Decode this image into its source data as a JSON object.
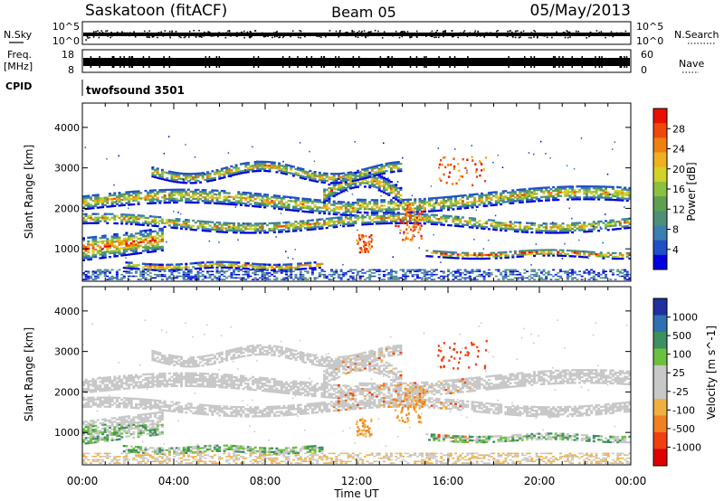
{
  "header": {
    "station": "Saskatoon (fitACF)",
    "beam": "Beam 05",
    "date": "05/May/2013"
  },
  "side_labels": {
    "nsky": "N.Sky",
    "freq": "Freq.",
    "mhz": "[MHz]",
    "cpid": "CPID",
    "nsearch": "N.Search",
    "nave": "Nave"
  },
  "noise_panel": {
    "left_ticks": [
      "10^5",
      "10^0"
    ],
    "right_ticks": [
      "10^5",
      "10^0"
    ]
  },
  "freq_panel": {
    "left_ticks": [
      "18",
      "8"
    ],
    "right_ticks": [
      "60",
      "0"
    ]
  },
  "cpid_label": "twofsound 3501",
  "chart_data": [
    {
      "type": "heatmap",
      "name": "power",
      "ylabel": "Slant Range [km]",
      "yticks": [
        "1000",
        "2000",
        "3000",
        "4000"
      ],
      "ylim": [
        200,
        4600
      ],
      "colorbar_label": "Power [dB]",
      "colorbar_ticks": [
        "4",
        "8",
        "12",
        "16",
        "20",
        "24",
        "28"
      ],
      "colors": [
        "#0000e0",
        "#2050c8",
        "#3d7eb0",
        "#4f8f78",
        "#5fa050",
        "#8cc040",
        "#d2d228",
        "#f0b020",
        "#f08010",
        "#f04808",
        "#e81000"
      ]
    },
    {
      "type": "heatmap",
      "name": "velocity",
      "ylabel": "Slant Range [km]",
      "yticks": [
        "1000",
        "2000",
        "3000",
        "4000"
      ],
      "ylim": [
        200,
        4600
      ],
      "colorbar_label": "Velocity [m s^-1]",
      "colorbar_ticks": [
        "1000",
        "500",
        "100",
        "25",
        "-25",
        "-100",
        "-500",
        "-1000"
      ],
      "colors": [
        "#2030a0",
        "#3070b0",
        "#3f8f60",
        "#6cc040",
        "#c8c8c8",
        "#c8c8c8",
        "#f0b040",
        "#f08020",
        "#f04010",
        "#e00000"
      ]
    }
  ],
  "time_axis": {
    "ticks": [
      "00:00",
      "04:00",
      "08:00",
      "12:00",
      "16:00",
      "20:00",
      "00:00"
    ],
    "label": "Time UT",
    "hours": [
      0,
      4,
      8,
      12,
      16,
      20,
      24
    ]
  }
}
